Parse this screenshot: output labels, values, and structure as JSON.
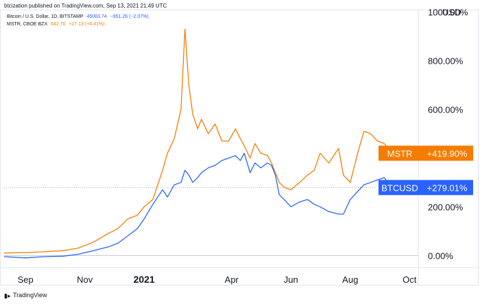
{
  "header": {
    "published": "btcization published on TradingView.com, Sep 13, 2021 21:49 UTC"
  },
  "legend": {
    "btc": {
      "name": "Bitcoin / U.S. Dollar, 1D, BITSTAMP",
      "value": "45083.74",
      "change": "−951.26 (−2.07%)"
    },
    "mstr": {
      "name": "MSTR, CBOE BZX",
      "value": "642.70",
      "change": "+27.13 (+4.41%)"
    }
  },
  "footer": {
    "brand": "TradingView",
    "icon": "tradingview-logo-icon"
  },
  "colors": {
    "btc": "#2962ff",
    "mstr": "#f57c00",
    "grid": "#e0e3eb",
    "text": "#131722"
  },
  "chart_data": {
    "type": "line",
    "title": "",
    "xlabel": "",
    "ylabel": "",
    "x_tick_labels": [
      "Sep",
      "Nov",
      "2021",
      "Apr",
      "Jun",
      "Aug",
      "Oct"
    ],
    "y_tick_labels": [
      "1000.00%",
      "800.00%",
      "600.00%",
      "200.00%",
      "0.00%"
    ],
    "currency_label": "USD",
    "ylim": [
      -50,
      1010
    ],
    "y_axis_unit": "%",
    "x": [
      "2020-08-10",
      "2020-09-01",
      "2020-09-20",
      "2020-10-10",
      "2020-10-25",
      "2020-11-10",
      "2020-11-25",
      "2020-12-05",
      "2020-12-15",
      "2020-12-25",
      "2021-01-01",
      "2021-01-10",
      "2021-01-20",
      "2021-01-25",
      "2021-02-01",
      "2021-02-08",
      "2021-02-12",
      "2021-02-16",
      "2021-02-20",
      "2021-02-25",
      "2021-03-01",
      "2021-03-08",
      "2021-03-15",
      "2021-03-22",
      "2021-03-29",
      "2021-04-05",
      "2021-04-10",
      "2021-04-14",
      "2021-04-20",
      "2021-04-25",
      "2021-05-01",
      "2021-05-08",
      "2021-05-12",
      "2021-05-16",
      "2021-05-20",
      "2021-05-25",
      "2021-06-01",
      "2021-06-10",
      "2021-06-18",
      "2021-06-25",
      "2021-07-01",
      "2021-07-10",
      "2021-07-20",
      "2021-07-25",
      "2021-08-01",
      "2021-08-08",
      "2021-08-15",
      "2021-08-22",
      "2021-08-29",
      "2021-09-05",
      "2021-09-13"
    ],
    "series": [
      {
        "name": "MSTR",
        "values": [
          10,
          12,
          15,
          20,
          30,
          55,
          90,
          110,
          150,
          165,
          200,
          230,
          350,
          420,
          480,
          600,
          930,
          700,
          580,
          520,
          560,
          500,
          540,
          470,
          470,
          520,
          480,
          450,
          400,
          460,
          420,
          410,
          380,
          340,
          300,
          280,
          270,
          300,
          330,
          350,
          420,
          380,
          440,
          330,
          300,
          410,
          510,
          500,
          470,
          460,
          420
        ]
      },
      {
        "name": "BTCUSD",
        "values": [
          -5,
          -10,
          -5,
          -3,
          5,
          20,
          35,
          50,
          80,
          110,
          150,
          210,
          270,
          240,
          290,
          300,
          350,
          330,
          300,
          320,
          340,
          360,
          370,
          390,
          400,
          410,
          390,
          420,
          340,
          380,
          360,
          380,
          370,
          330,
          250,
          230,
          200,
          220,
          230,
          210,
          200,
          180,
          170,
          170,
          230,
          260,
          290,
          300,
          310,
          320,
          279
        ]
      }
    ],
    "last_labels": [
      {
        "series": "MSTR",
        "ticker": "MSTR",
        "value": "+419.90%"
      },
      {
        "series": "BTCUSD",
        "ticker": "BTCUSD",
        "value": "+279.01%"
      }
    ],
    "grid": true,
    "legend_position": "top-left"
  }
}
